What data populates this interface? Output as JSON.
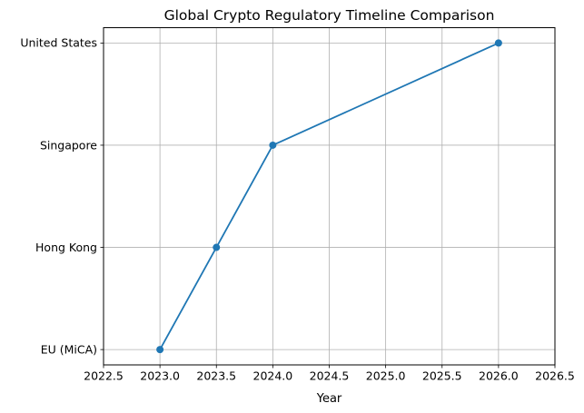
{
  "chart_data": {
    "type": "line",
    "title": "Global Crypto Regulatory Timeline Comparison",
    "xlabel": "Year",
    "ylabel": "",
    "y_categories": [
      "EU (MiCA)",
      "Hong Kong",
      "Singapore",
      "United States"
    ],
    "points": [
      {
        "x": 2023.0,
        "category": "EU (MiCA)"
      },
      {
        "x": 2023.5,
        "category": "Hong Kong"
      },
      {
        "x": 2024.0,
        "category": "Singapore"
      },
      {
        "x": 2026.0,
        "category": "United States"
      }
    ],
    "x_ticks": [
      2022.5,
      2023.0,
      2023.5,
      2024.0,
      2024.5,
      2025.0,
      2025.5,
      2026.0,
      2026.5
    ],
    "x_tick_labels": [
      "2022.5",
      "2023.0",
      "2023.5",
      "2024.0",
      "2024.5",
      "2025.0",
      "2025.5",
      "2026.0",
      "2026.5"
    ],
    "xlim": [
      2022.5,
      2026.5
    ],
    "ylim": [
      -0.15,
      3.15
    ],
    "grid": true,
    "legend": "none",
    "line_color": "#1f77b4",
    "marker": "circle",
    "marker_color": "#1f77b4",
    "grid_color": "#b0b0b0",
    "spine_color": "#000000",
    "text_color": "#000000",
    "background_color": "#ffffff"
  }
}
